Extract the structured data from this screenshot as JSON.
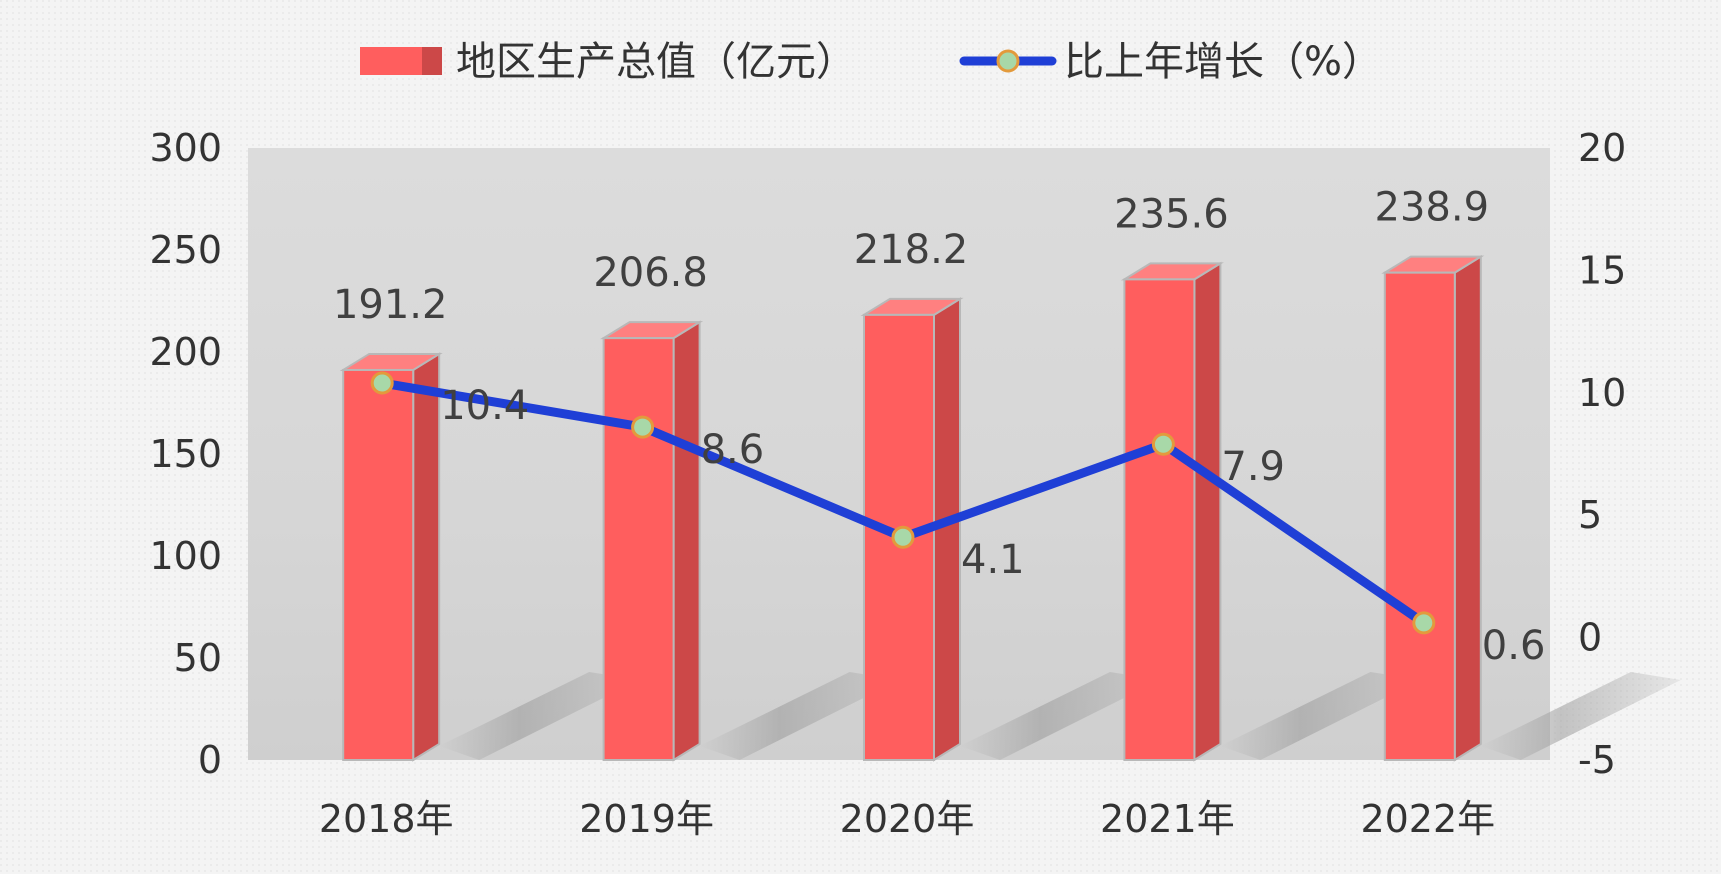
{
  "chart_data": {
    "type": "bar",
    "categories": [
      "2018年",
      "2019年",
      "2020年",
      "2021年",
      "2022年"
    ],
    "series": [
      {
        "name": "地区生产总值（亿元）",
        "type": "bar",
        "axis": "left",
        "values": [
          191.2,
          206.8,
          218.2,
          235.6,
          238.9
        ]
      },
      {
        "name": "比上年增长（%）",
        "type": "line",
        "axis": "right",
        "values": [
          10.4,
          8.6,
          4.1,
          7.9,
          0.6
        ]
      }
    ],
    "y_left": {
      "min": 0,
      "max": 300,
      "ticks": [
        0,
        50,
        100,
        150,
        200,
        250,
        300
      ]
    },
    "y_right": {
      "min": -5,
      "max": 20,
      "ticks": [
        -5,
        0,
        5,
        10,
        15,
        20
      ]
    },
    "legend_position": "top",
    "grid": false
  },
  "colors": {
    "bar_front": "#ff5e5e",
    "bar_side": "#cc4848",
    "bar_top": "#ff8080",
    "line": "#1f3fd6",
    "marker_fill": "#a8d8a8",
    "marker_stroke": "#e39a3c",
    "plot_bg": "#d9d9d9"
  }
}
